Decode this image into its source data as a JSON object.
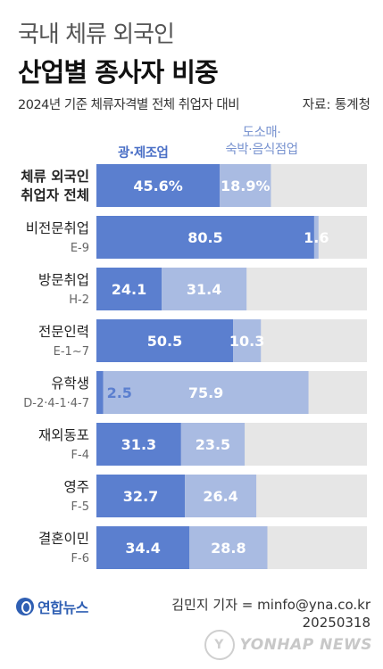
{
  "header": {
    "title_line1": "국내 체류 외국인",
    "title_line2": "산업별 종사자 비중",
    "subtitle": "2024년 기준 체류자격별 전체 취업자 대비",
    "source": "자료: 통계청"
  },
  "chart_data": {
    "type": "bar",
    "stacked": true,
    "orientation": "horizontal",
    "categories": [
      {
        "name": "체류 외국인",
        "name2": "취업자 전체",
        "code": ""
      },
      {
        "name": "비전문취업",
        "name2": "",
        "code": "E-9"
      },
      {
        "name": "방문취업",
        "name2": "",
        "code": "H-2"
      },
      {
        "name": "전문인력",
        "name2": "",
        "code": "E-1~7"
      },
      {
        "name": "유학생",
        "name2": "",
        "code": "D-2·4-1·4-7"
      },
      {
        "name": "재외동포",
        "name2": "",
        "code": "F-4"
      },
      {
        "name": "영주",
        "name2": "",
        "code": "F-5"
      },
      {
        "name": "결혼이민",
        "name2": "",
        "code": "F-6"
      }
    ],
    "series": [
      {
        "name": "광·제조업",
        "values": [
          45.6,
          80.5,
          24.1,
          50.5,
          2.5,
          31.3,
          32.7,
          34.4
        ],
        "labels": [
          "45.6%",
          "80.5",
          "24.1",
          "50.5",
          "2.5",
          "31.3",
          "32.7",
          "34.4"
        ]
      },
      {
        "name": "도소매·숙박·음식점업",
        "values": [
          18.9,
          1.6,
          31.4,
          10.3,
          75.9,
          23.5,
          26.4,
          28.8
        ],
        "labels": [
          "18.9%",
          "1.6",
          "31.4",
          "10.3",
          "75.9",
          "23.5",
          "26.4",
          "28.8"
        ]
      }
    ],
    "xlim": [
      0,
      100
    ],
    "colors": {
      "series1": "#5b7fcf",
      "series2": "#a9bbe2",
      "remainder": "#e6e6e6",
      "series1_text_light_bg": "#5b7fcf"
    }
  },
  "legend": {
    "series1": "광·제조업",
    "series2_line1": "도소매·",
    "series2_line2": "숙박·음식점업"
  },
  "footer": {
    "logo": "연합뉴스",
    "credit_line1": "김민지 기자 = minfo@yna.co.kr",
    "credit_line2": "20250318",
    "watermark": "YONHAP NEWS"
  }
}
